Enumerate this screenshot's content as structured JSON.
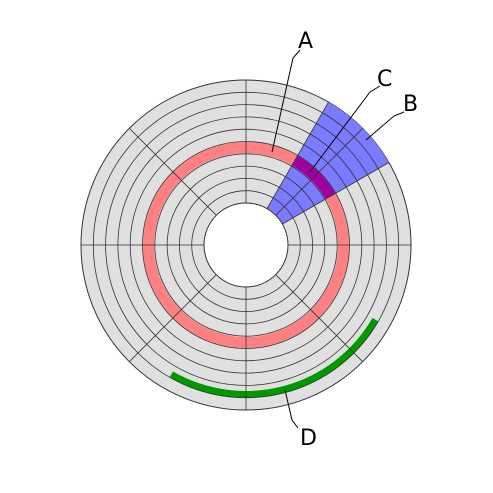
{
  "labels": {
    "track": "A",
    "sector": "B",
    "track_sector": "C",
    "cluster": "D"
  }
}
